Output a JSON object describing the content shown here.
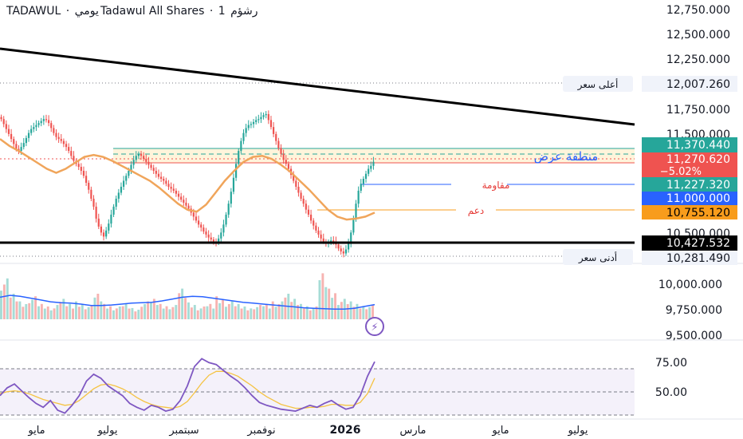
{
  "header": {
    "symbol": "TADAWUL",
    "sep1": "·",
    "period": "يومي",
    "name": "Tadawul All Shares",
    "sep2": "·",
    "interval": "1",
    "interval_label": "رشؤم"
  },
  "colors": {
    "up": "#26a69a",
    "down": "#ef5350",
    "ma": "#f0a55b",
    "rsi": "#7e57c2",
    "rsi_ma": "#f5c342",
    "volume_ma": "#2962ff",
    "trendline": "#000000",
    "supply_zone": "#fff4db",
    "resistance": "#2962ff",
    "support": "#f89c1c",
    "zone_label": "#2962ff",
    "label_red": "#e53935"
  },
  "chart_data": [
    {
      "type": "candlestick",
      "x_ticks": [
        "مايو",
        "يوليو",
        "سبتمبر",
        "نوفمبر",
        "2026",
        "مارس",
        "مايو",
        "يوليو"
      ],
      "y_ticks": [
        "12,750.000",
        "12,500.000",
        "12,250.000",
        "11,750.000",
        "11,500.000",
        "10,500.000"
      ],
      "ylim": [
        10250,
        12800
      ],
      "close": [
        11700,
        11650,
        11600,
        11550,
        11500,
        11450,
        11400,
        11380,
        11420,
        11460,
        11510,
        11560,
        11600,
        11620,
        11640,
        11660,
        11680,
        11700,
        11690,
        11660,
        11610,
        11560,
        11520,
        11500,
        11480,
        11450,
        11420,
        11380,
        11330,
        11280,
        11250,
        11220,
        11180,
        11130,
        11060,
        10990,
        10900,
        10820,
        10700,
        10620,
        10560,
        10520,
        10580,
        10650,
        10740,
        10820,
        10900,
        10960,
        11020,
        11080,
        11130,
        11180,
        11240,
        11290,
        11330,
        11350,
        11330,
        11300,
        11270,
        11240,
        11210,
        11180,
        11150,
        11120,
        11100,
        11080,
        11050,
        11020,
        11000,
        10980,
        10950,
        10920,
        10890,
        10860,
        10830,
        10800,
        10760,
        10720,
        10680,
        10640,
        10610,
        10570,
        10540,
        10510,
        10490,
        10470,
        10460,
        10500,
        10560,
        10640,
        10740,
        10850,
        10970,
        11110,
        11250,
        11380,
        11480,
        11560,
        11610,
        11640,
        11650,
        11670,
        11690,
        11700,
        11720,
        11740,
        11750,
        11690,
        11620,
        11550,
        11480,
        11410,
        11350,
        11290,
        11250,
        11200,
        11140,
        11080,
        11020,
        10960,
        10900,
        10850,
        10790,
        10740,
        10680,
        10630,
        10580,
        10540,
        10500,
        10470,
        10450,
        10460,
        10480,
        10470,
        10440,
        10400,
        10370,
        10350,
        10390,
        10450,
        10560,
        10700,
        10850,
        10980,
        11050,
        11100,
        11150,
        11200,
        11230,
        11271
      ],
      "moving_average": [
        11500,
        11430,
        11380,
        11320,
        11260,
        11200,
        11160,
        11200,
        11260,
        11320,
        11340,
        11320,
        11280,
        11230,
        11180,
        11130,
        11080,
        11010,
        10930,
        10850,
        10790,
        10770,
        10840,
        10960,
        11080,
        11180,
        11270,
        11320,
        11330,
        11300,
        11240,
        11170,
        11080,
        10990,
        10890,
        10790,
        10720,
        10690,
        10700,
        10720,
        10760
      ],
      "levels": {
        "high": {
          "label": "أعلى سعر",
          "value": "12,007.260"
        },
        "supply_top": {
          "value": "11,370.440"
        },
        "last": {
          "value": "11,270.620",
          "change": "−5.02%"
        },
        "resistance": {
          "label": "مقاومة",
          "value": "11,227.320"
        },
        "round": {
          "value": "11,000.000"
        },
        "support": {
          "label": "دعم",
          "value": "10,755.120"
        },
        "horizontal": {
          "value": "10,427.532"
        },
        "low": {
          "label": "أدنى سعر",
          "value": "10,281.490"
        }
      },
      "supply_zone_label": "منطقة عرض",
      "trendline": {
        "from": 12350,
        "to": 11580
      }
    },
    {
      "type": "bar",
      "name": "volume",
      "y_ticks": [
        "10,000.000",
        "9,750.000",
        "9,500.000"
      ],
      "values": [
        0.8,
        0.5,
        0.35,
        0.45,
        0.3,
        0.25,
        0.4,
        0.3,
        0.35,
        0.28,
        0.5,
        0.3,
        0.25,
        0.3,
        0.22,
        0.35,
        0.4,
        0.3,
        0.28,
        0.6,
        0.33,
        0.25,
        0.3,
        0.45,
        0.35,
        0.3,
        0.25,
        0.28,
        0.3,
        0.35,
        0.5,
        0.4,
        0.3,
        0.25,
        0.9,
        0.6,
        0.4,
        0.35,
        0.3,
        0.28
      ],
      "ma": [
        0.48,
        0.52,
        0.5,
        0.46,
        0.42,
        0.38,
        0.36,
        0.35,
        0.33,
        0.3,
        0.3,
        0.31,
        0.33,
        0.35,
        0.36,
        0.37,
        0.4,
        0.44,
        0.48,
        0.5,
        0.49,
        0.46,
        0.43,
        0.4,
        0.37,
        0.35,
        0.33,
        0.31,
        0.29,
        0.27,
        0.25,
        0.24,
        0.23,
        0.22,
        0.22,
        0.24,
        0.28,
        0.32
      ]
    },
    {
      "type": "line",
      "name": "RSI",
      "y_ticks": [
        "75.00",
        "50.00"
      ],
      "ylim": [
        20,
        80
      ],
      "values": [
        40,
        48,
        52,
        45,
        38,
        32,
        28,
        35,
        25,
        22,
        30,
        40,
        55,
        62,
        58,
        50,
        45,
        40,
        32,
        28,
        25,
        30,
        28,
        24,
        26,
        35,
        50,
        70,
        78,
        74,
        72,
        66,
        60,
        55,
        48,
        40,
        33,
        30,
        28,
        26,
        25,
        24,
        27,
        30,
        28,
        32,
        35,
        30,
        26,
        28,
        40,
        60,
        75
      ],
      "signal": [
        42,
        44,
        45,
        44,
        42,
        39,
        36,
        34,
        32,
        30,
        31,
        35,
        41,
        47,
        51,
        52,
        50,
        47,
        43,
        38,
        34,
        31,
        29,
        28,
        27,
        29,
        34,
        43,
        53,
        61,
        65,
        65,
        63,
        60,
        55,
        50,
        44,
        39,
        35,
        31,
        29,
        27,
        27,
        28,
        28,
        29,
        31,
        31,
        30,
        30,
        33,
        42,
        58
      ]
    }
  ]
}
